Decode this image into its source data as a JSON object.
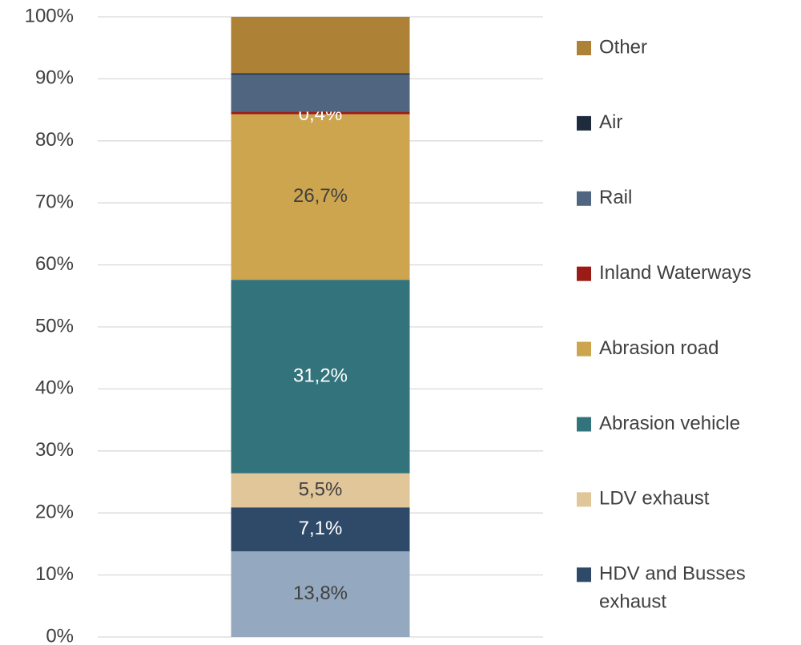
{
  "chart_data": {
    "type": "stacked_bar",
    "categories": [
      null
    ],
    "ylim": [
      0,
      100
    ],
    "yticks": [
      {
        "value": 0,
        "label": "0%"
      },
      {
        "value": 10,
        "label": "10%"
      },
      {
        "value": 20,
        "label": "20%"
      },
      {
        "value": 30,
        "label": "30%"
      },
      {
        "value": 40,
        "label": "40%"
      },
      {
        "value": 50,
        "label": "50%"
      },
      {
        "value": 60,
        "label": "60%"
      },
      {
        "value": 70,
        "label": "70%"
      },
      {
        "value": 80,
        "label": "80%"
      },
      {
        "value": 90,
        "label": "90%"
      },
      {
        "value": 100,
        "label": "100%"
      }
    ],
    "grid": true,
    "legend": "right",
    "series": [
      {
        "color": "#94a8bf",
        "values": [
          13.8
        ],
        "value_labels": [
          "13,8%"
        ]
      },
      {
        "name": "HDV and Busses exhaust",
        "color": "#2e4a68",
        "values": [
          7.1
        ],
        "value_labels": [
          "7,1%"
        ]
      },
      {
        "name": "LDV exhaust",
        "color": "#e0c699",
        "values": [
          5.5
        ],
        "value_labels": [
          "5,5%"
        ]
      },
      {
        "name": "Abrasion vehicle",
        "color": "#32737c",
        "values": [
          31.2
        ],
        "value_labels": [
          "31,2%"
        ]
      },
      {
        "name": "Abrasion road",
        "color": "#cda54f",
        "values": [
          26.7
        ],
        "value_labels": [
          "26,7%"
        ]
      },
      {
        "name": "Inland Waterways",
        "color": "#9b1c16",
        "values": [
          0.4
        ],
        "value_labels": [
          "0,4%"
        ]
      },
      {
        "name": "Rail",
        "color": "#4f6580",
        "values": [
          6.0
        ]
      },
      {
        "name": "Air",
        "color": "#1d2b3d",
        "values": [
          0.2
        ]
      },
      {
        "name": "Other",
        "color": "#ae8236",
        "values": [
          9.1
        ]
      }
    ]
  }
}
